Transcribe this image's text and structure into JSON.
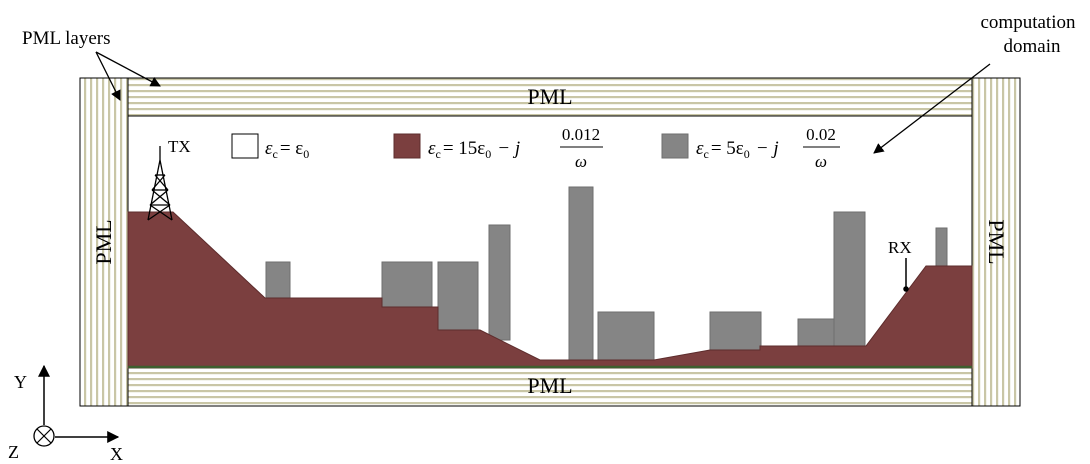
{
  "annotations": {
    "pml_layers": "PML layers",
    "computation_line1": "computation",
    "computation_line2": "domain",
    "pml_top": "PML",
    "pml_bottom": "PML",
    "pml_left": "PML",
    "pml_right": "PML",
    "tx": "TX",
    "rx": "RX"
  },
  "legend": {
    "free_space": {
      "eps": "ε",
      "sub": "c",
      "rest": "= ε",
      "sub2": "0",
      "color": "#ffffff"
    },
    "ground": {
      "eps": "ε",
      "sub": "c",
      "rest": "= 15ε",
      "sub2": "0",
      "minus_j": "− j",
      "numerator": "0.012",
      "denominator": "ω",
      "color": "#7b3f3f"
    },
    "buildings": {
      "eps": "ε",
      "sub": "c",
      "rest": "= 5ε",
      "sub2": "0",
      "minus_j": "− j",
      "numerator": "0.02",
      "denominator": "ω",
      "color": "#858585"
    }
  },
  "axes": {
    "y": "Y",
    "x": "X",
    "z": "Z"
  },
  "colors": {
    "pml_stripe": "#c9c6a6",
    "ground": "#7b3f3f",
    "building": "#858585",
    "baseline": "#3f5f2f"
  }
}
